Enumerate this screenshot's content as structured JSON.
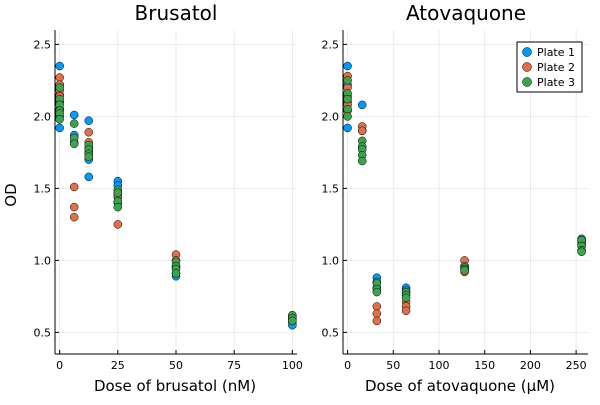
{
  "figure": {
    "left_title": "Brusatol",
    "right_title": "Atovaquone"
  },
  "colors": {
    "plate1": "#009AFA",
    "plate2": "#E26F46",
    "plate3": "#3DA44E",
    "grid": "#E6E6E6",
    "axis": "#000000",
    "marker_edge": "#000000"
  },
  "chart_data": [
    {
      "type": "scatter",
      "title": "Brusatol",
      "xlabel": "Dose of brusatol (nM)",
      "ylabel": "OD",
      "xlim": [
        -2,
        102
      ],
      "ylim": [
        0.35,
        2.6
      ],
      "xticks": [
        0,
        25,
        50,
        75,
        100
      ],
      "xtick_labels": [
        "0",
        "25",
        "50",
        "75",
        "100"
      ],
      "yticks": [
        0.5,
        1.0,
        1.5,
        2.0,
        2.5
      ],
      "ytick_labels": [
        "0.5",
        "1.0",
        "1.5",
        "2.0",
        "2.5"
      ],
      "grid": true,
      "legend": false,
      "series": [
        {
          "name": "Plate 1",
          "x": [
            0,
            0,
            0,
            0,
            0,
            0,
            0,
            6.25,
            6.25,
            6.25,
            12.5,
            12.5,
            12.5,
            12.5,
            25,
            25,
            25,
            25,
            50,
            50,
            50,
            100,
            100,
            100
          ],
          "y": [
            2.35,
            2.22,
            2.15,
            2.1,
            2.05,
            2.0,
            1.92,
            2.01,
            1.87,
            1.82,
            1.97,
            1.75,
            1.7,
            1.58,
            1.55,
            1.52,
            1.44,
            1.4,
            0.95,
            0.91,
            0.89,
            0.6,
            0.57,
            0.55
          ]
        },
        {
          "name": "Plate 2",
          "x": [
            0,
            0,
            0,
            0,
            0,
            0,
            6.25,
            6.25,
            6.25,
            12.5,
            12.5,
            12.5,
            25,
            25,
            25,
            50,
            50,
            50,
            100,
            100
          ],
          "y": [
            2.27,
            2.22,
            2.18,
            2.14,
            2.1,
            2.05,
            1.51,
            1.37,
            1.3,
            1.89,
            1.82,
            1.78,
            1.47,
            1.45,
            1.25,
            1.04,
            1.0,
            0.96,
            0.61,
            0.59
          ]
        },
        {
          "name": "Plate 3",
          "x": [
            0,
            0,
            0,
            0,
            0,
            0,
            6.25,
            6.25,
            6.25,
            12.5,
            12.5,
            12.5,
            12.5,
            25,
            25,
            25,
            25,
            50,
            50,
            50,
            50,
            100,
            100,
            100
          ],
          "y": [
            2.2,
            2.12,
            2.08,
            2.04,
            2.02,
            1.98,
            1.95,
            1.85,
            1.81,
            1.8,
            1.77,
            1.74,
            1.72,
            1.49,
            1.47,
            1.41,
            1.37,
            0.99,
            0.96,
            0.94,
            0.91,
            0.62,
            0.6,
            0.58
          ]
        }
      ]
    },
    {
      "type": "scatter",
      "title": "Atovaquone",
      "xlabel": "Dose of atovaquone (μM)",
      "ylabel": "",
      "xlim": [
        -5,
        263
      ],
      "ylim": [
        0.35,
        2.6
      ],
      "xticks": [
        0,
        50,
        100,
        150,
        200,
        250
      ],
      "xtick_labels": [
        "0",
        "50",
        "100",
        "150",
        "200",
        "250"
      ],
      "yticks": [
        0.5,
        1.0,
        1.5,
        2.0,
        2.5
      ],
      "ytick_labels": [
        "0.5",
        "1.0",
        "1.5",
        "2.0",
        "2.5"
      ],
      "grid": true,
      "legend": true,
      "legend_position": "top-right",
      "series": [
        {
          "name": "Plate 1",
          "x": [
            0,
            0,
            0,
            0,
            16,
            16,
            32,
            32,
            32,
            64,
            64,
            64,
            128,
            128,
            256,
            256,
            256
          ],
          "y": [
            2.35,
            2.22,
            2.1,
            1.92,
            2.08,
            1.9,
            0.88,
            0.85,
            0.81,
            0.81,
            0.79,
            0.77,
            0.96,
            0.94,
            1.15,
            1.13,
            1.11
          ]
        },
        {
          "name": "Plate 2",
          "x": [
            0,
            0,
            0,
            0,
            0,
            16,
            16,
            32,
            32,
            32,
            64,
            64,
            64,
            128,
            128,
            128,
            256,
            256
          ],
          "y": [
            2.28,
            2.2,
            2.14,
            2.08,
            2.04,
            1.93,
            1.9,
            0.68,
            0.63,
            0.58,
            0.71,
            0.68,
            0.65,
            1.0,
            0.96,
            0.92,
            1.14,
            1.12
          ]
        },
        {
          "name": "Plate 3",
          "x": [
            0,
            0,
            0,
            0,
            0,
            16,
            16,
            16,
            16,
            16,
            32,
            32,
            32,
            64,
            64,
            64,
            128,
            128,
            128,
            256,
            256,
            256,
            256
          ],
          "y": [
            2.25,
            2.16,
            2.12,
            2.05,
            2.0,
            1.83,
            1.79,
            1.77,
            1.73,
            1.69,
            0.84,
            0.8,
            0.78,
            0.78,
            0.76,
            0.74,
            0.95,
            0.94,
            0.93,
            1.14,
            1.1,
            1.07,
            1.06
          ]
        }
      ]
    }
  ]
}
